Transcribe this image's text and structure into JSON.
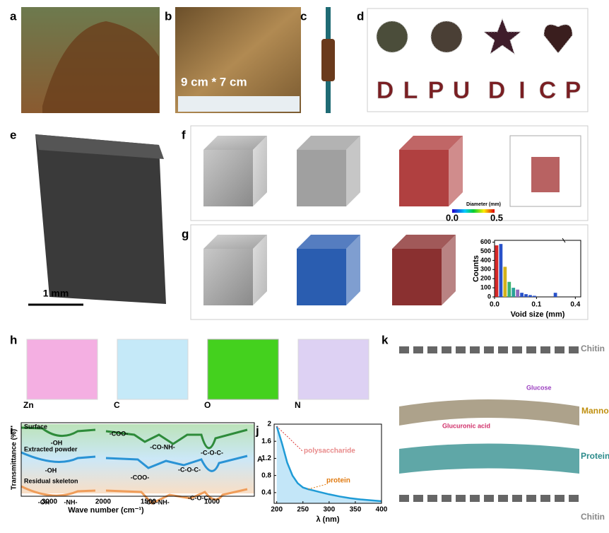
{
  "panel_labels": [
    "a",
    "b",
    "c",
    "d",
    "e",
    "f",
    "g",
    "h",
    "i",
    "j",
    "k"
  ],
  "b_caption": "9 cm * 7 cm",
  "d_letters": [
    "D",
    "L",
    "P",
    "U",
    "D",
    "I",
    "C",
    "P"
  ],
  "e_scale": "1 mm",
  "f_colorbar": {
    "title": "Diameter (mm)",
    "min": "0.0",
    "max": "0.5"
  },
  "h_labels": [
    "Zn",
    "C",
    "O",
    "N"
  ],
  "ftir": {
    "y_label": "Transmittance (%)",
    "x_label": "Wave number (cm⁻¹)",
    "xticks": [
      3000,
      2000,
      1500,
      1000
    ],
    "series_names": [
      "Surface",
      "Extracted powder",
      "Residual skeleton"
    ],
    "peaks": [
      "-OH",
      "-COO-",
      "-CO-NH-",
      "-C-O-C-",
      "-OH",
      "-COO-",
      "-C-O-C-",
      "-OH",
      "-NH-",
      "-CO-NH-",
      "-C-O-C-"
    ]
  },
  "chart_data": [
    {
      "type": "bar",
      "x_label": "Void size (mm)",
      "y_label": "Counts",
      "x": [
        0.005,
        0.015,
        0.025,
        0.035,
        0.045,
        0.055,
        0.065,
        0.075,
        0.085,
        0.095,
        0.145
      ],
      "values": [
        565,
        580,
        330,
        165,
        100,
        80,
        45,
        30,
        20,
        12,
        45
      ],
      "colors": [
        "#d62728",
        "#2851c9",
        "#d4b21a",
        "#3cb371",
        "#2aa198",
        "#8e6bbf",
        "#2851c9",
        "#2851c9",
        "#2851c9",
        "#2851c9",
        "#2851c9"
      ],
      "bar_width": 0.008,
      "xlim": [
        0,
        0.42
      ],
      "xbreak": [
        0.16,
        0.36
      ],
      "ylim": [
        0,
        620
      ],
      "xticks": [
        {
          "value": 0,
          "label": "0.0"
        },
        0.1,
        0.4
      ],
      "yticks": [
        0,
        100,
        200,
        300,
        400,
        500,
        600
      ]
    },
    {
      "type": "line",
      "x_label": "λ (nm)",
      "y_label": "A",
      "x": [
        200,
        205,
        210,
        220,
        230,
        240,
        250,
        260,
        270,
        280,
        300,
        320,
        340,
        360,
        380,
        400
      ],
      "values": [
        1.95,
        1.75,
        1.55,
        1.1,
        0.8,
        0.62,
        0.52,
        0.48,
        0.45,
        0.42,
        0.36,
        0.31,
        0.27,
        0.24,
        0.22,
        0.2
      ],
      "color": "#1f9bd6",
      "xlim": [
        195,
        400
      ],
      "ylim": [
        0.15,
        2.0
      ],
      "xticks": [
        200,
        250,
        300,
        350,
        400
      ],
      "yticks": [
        0.4,
        0.8,
        1.2,
        1.6,
        2.0
      ],
      "annotations": [
        "polysaccharide",
        "protein"
      ]
    }
  ],
  "k_labels": [
    "Chitin",
    "Glucose",
    "Mannose",
    "Glucuronic acid",
    "Protein",
    "Chitin"
  ]
}
